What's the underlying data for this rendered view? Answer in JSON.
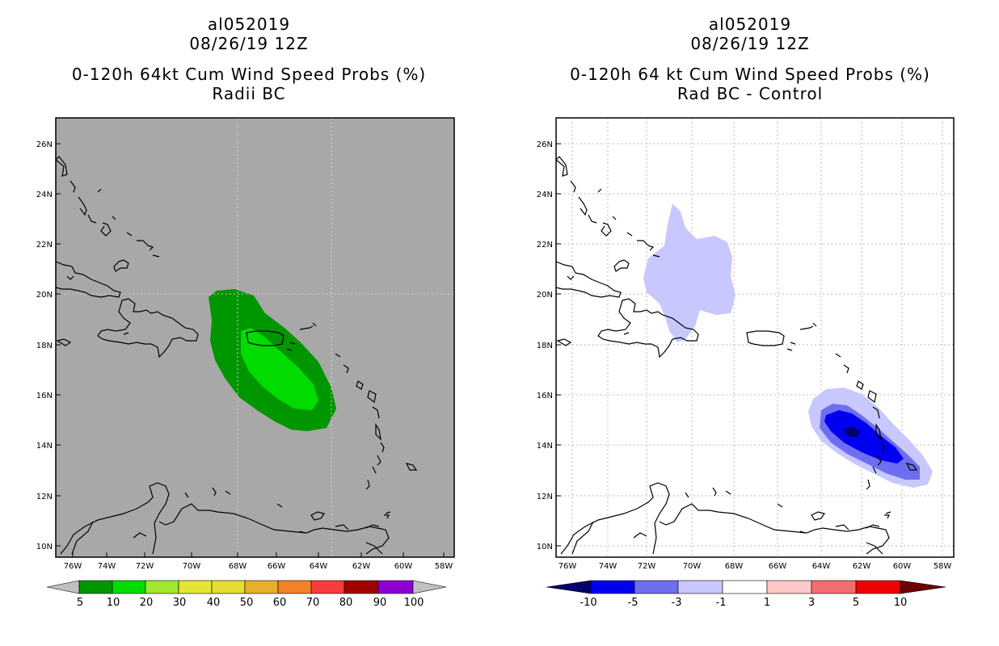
{
  "left": {
    "title_line1": "al052019",
    "title_line2": "08/26/19 12Z",
    "title_line3": "0-120h 64kt Cum Wind Speed Probs (%)",
    "title_line4": "Radii BC",
    "lat_labels": [
      "26N",
      "24N",
      "22N",
      "20N",
      "18N",
      "16N",
      "14N",
      "12N",
      "10N"
    ],
    "lon_labels": [
      "76W",
      "74W",
      "72W",
      "70W",
      "68W",
      "66W",
      "64W",
      "62W",
      "60W",
      "58W"
    ],
    "colorbar": {
      "labels": [
        "5",
        "10",
        "20",
        "30",
        "40",
        "50",
        "60",
        "70",
        "80",
        "90",
        "100"
      ],
      "colors": [
        "#c0c0c0",
        "#009600",
        "#00dc00",
        "#a0e632",
        "#e6e632",
        "#e6dc32",
        "#e6af2d",
        "#f08228",
        "#fa3c3c",
        "#a00000",
        "#8c00d2",
        "#c0c0c0"
      ]
    }
  },
  "right": {
    "title_line1": "al052019",
    "title_line2": "08/26/19 12Z",
    "title_line3": "0-120h 64 kt Cum Wind Speed Probs (%)",
    "title_line4": "Rad BC - Control",
    "lat_labels": [
      "26N",
      "24N",
      "22N",
      "20N",
      "18N",
      "16N",
      "14N",
      "12N",
      "10N"
    ],
    "lon_labels": [
      "76W",
      "74W",
      "72W",
      "70W",
      "68W",
      "66W",
      "64W",
      "62W",
      "60W",
      "58W"
    ],
    "colorbar": {
      "labels": [
        "-10",
        "-5",
        "-3",
        "-1",
        "1",
        "3",
        "5",
        "10"
      ],
      "colors": [
        "#00006e",
        "#0000f0",
        "#6e6ef0",
        "#c8c8ff",
        "#ffffff",
        "#ffc8c8",
        "#f06e6e",
        "#f00000",
        "#6e0000"
      ]
    }
  },
  "colors": {
    "ocean_left": "#a8a8a8",
    "ocean_right": "#ffffff",
    "prob_dark_green": "#009600",
    "prob_light_green": "#00dc00",
    "diff_light_blue": "#c8c8ff",
    "diff_mid_blue": "#6e6ef0",
    "diff_blue": "#0000f0",
    "diff_navy": "#00006e"
  }
}
